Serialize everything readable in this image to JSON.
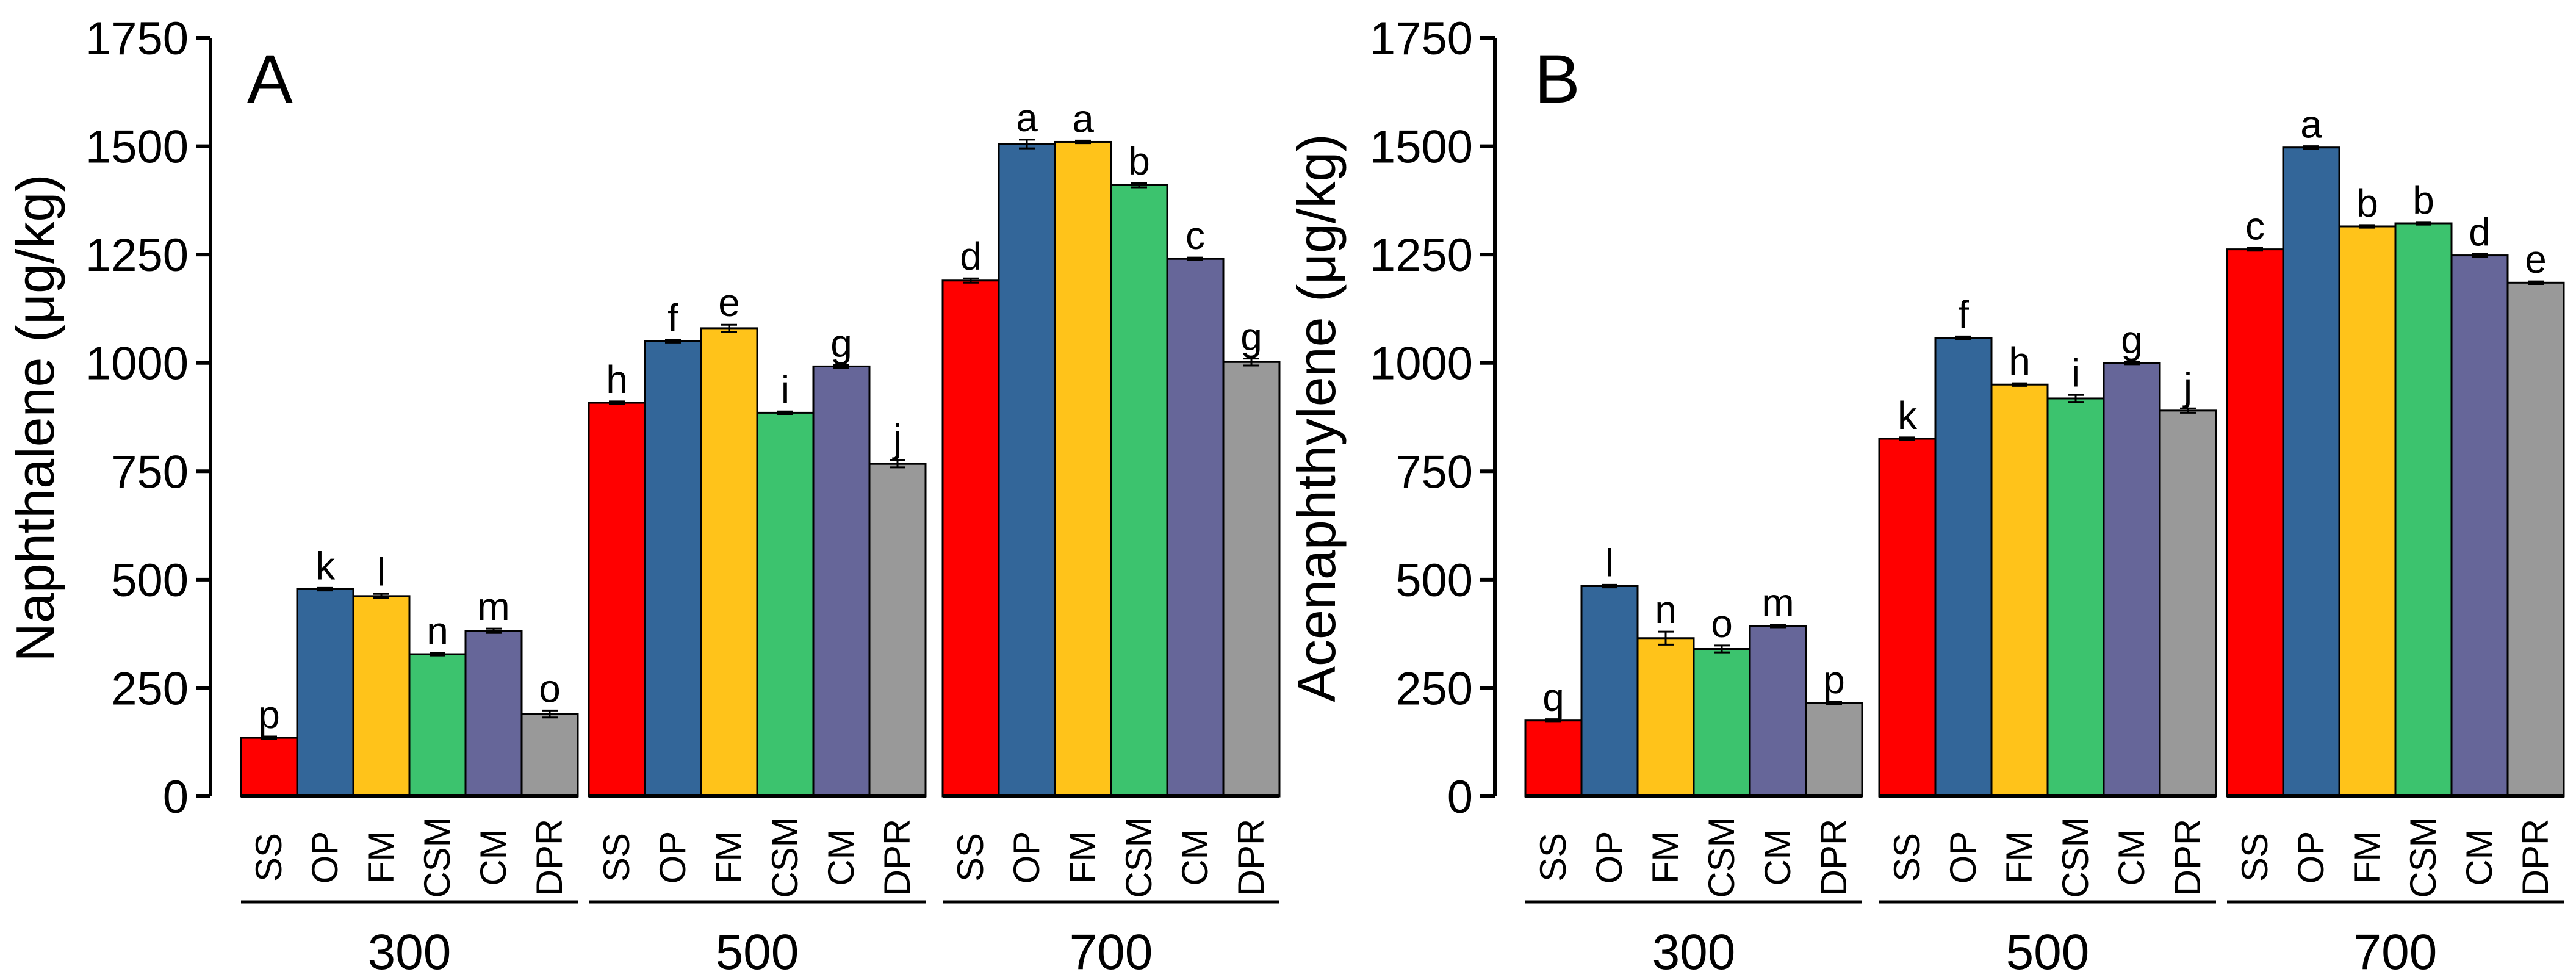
{
  "chart_data": [
    {
      "type": "bar",
      "panel_label": "A",
      "title": "",
      "xlabel": "",
      "ylabel": "Naphthalene (μg/kg)",
      "ylim": [
        0,
        1750
      ],
      "yticks": [
        "0",
        "250",
        "500",
        "750",
        "1000",
        "1250",
        "1500",
        "1750"
      ],
      "ytick_values": [
        0,
        250,
        500,
        750,
        1000,
        1250,
        1500,
        1750
      ],
      "grid": false,
      "categories": [
        "SS",
        "OP",
        "FM",
        "CSM",
        "CM",
        "DPR"
      ],
      "groups": [
        {
          "label": "300",
          "values": [
            135,
            478,
            462,
            328,
            382,
            190
          ],
          "errors": [
            3,
            3,
            5,
            3,
            5,
            8
          ],
          "letters": [
            "p",
            "k",
            "l",
            "n",
            "m",
            "o"
          ]
        },
        {
          "label": "500",
          "values": [
            908,
            1050,
            1080,
            885,
            992,
            767
          ],
          "errors": [
            3,
            3,
            8,
            3,
            3,
            8
          ],
          "letters": [
            "h",
            "f",
            "e",
            "i",
            "g",
            "j"
          ]
        },
        {
          "label": "700",
          "values": [
            1190,
            1505,
            1510,
            1410,
            1240,
            1002
          ],
          "errors": [
            5,
            10,
            3,
            5,
            3,
            8
          ],
          "letters": [
            "d",
            "a",
            "a",
            "b",
            "c",
            "g"
          ]
        }
      ]
    },
    {
      "type": "bar",
      "panel_label": "B",
      "title": "",
      "xlabel": "",
      "ylabel": "Acenaphthylene (μg/kg)",
      "ylim": [
        0,
        1750
      ],
      "yticks": [
        "0",
        "250",
        "500",
        "750",
        "1000",
        "1250",
        "1500",
        "1750"
      ],
      "ytick_values": [
        0,
        250,
        500,
        750,
        1000,
        1250,
        1500,
        1750
      ],
      "grid": false,
      "categories": [
        "SS",
        "OP",
        "FM",
        "CSM",
        "CM",
        "DPR"
      ],
      "groups": [
        {
          "label": "300",
          "values": [
            175,
            485,
            365,
            340,
            393,
            215
          ],
          "errors": [
            3,
            3,
            15,
            8,
            3,
            3
          ],
          "letters": [
            "q",
            "l",
            "n",
            "o",
            "m",
            "p"
          ]
        },
        {
          "label": "500",
          "values": [
            825,
            1058,
            950,
            918,
            1000,
            890
          ],
          "errors": [
            3,
            3,
            3,
            8,
            3,
            5
          ],
          "letters": [
            "k",
            "f",
            "h",
            "i",
            "g",
            "j"
          ]
        },
        {
          "label": "700",
          "values": [
            1262,
            1497,
            1315,
            1322,
            1248,
            1185
          ],
          "errors": [
            3,
            3,
            3,
            3,
            3,
            3
          ],
          "letters": [
            "c",
            "a",
            "b",
            "b",
            "d",
            "e"
          ]
        }
      ]
    }
  ],
  "colors": {
    "SS": "#ff0000",
    "OP": "#336699",
    "FM": "#ffc31a",
    "CSM": "#3cc36e",
    "CM": "#666699",
    "DPR": "#999999",
    "axis": "#000000",
    "background": "#ffffff"
  }
}
